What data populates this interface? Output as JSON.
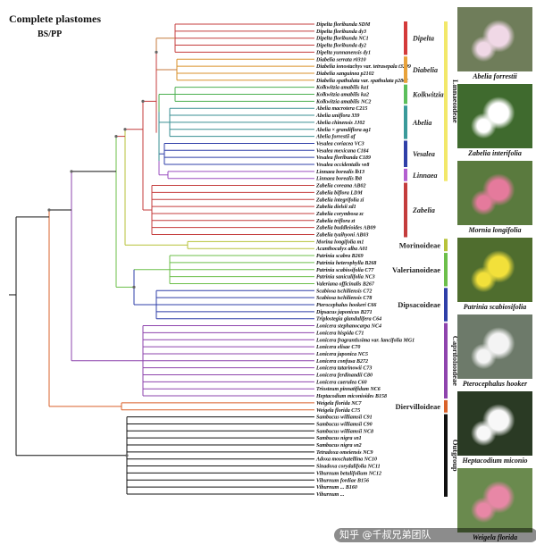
{
  "figure": {
    "title": "Complete plastomes",
    "subtitle": "BS/PP",
    "watermark": "知乎 @千叔兄弟团队"
  },
  "taxa": [
    {
      "n": "Dipelta floribunda SDM",
      "c": "#c43c3c"
    },
    {
      "n": "Dipelta floribunda dy3",
      "c": "#c43c3c"
    },
    {
      "n": "Dipelta floribunda NC1",
      "c": "#c43c3c"
    },
    {
      "n": "Dipelta floribunda dy2",
      "c": "#c43c3c"
    },
    {
      "n": "Dipelta yunnanensis dy1",
      "c": "#c43c3c"
    },
    {
      "n": "Diabelia serrata r0310",
      "c": "#d9922b"
    },
    {
      "n": "Diabelia ionostachys var. tetrasepala t3209",
      "c": "#d9922b"
    },
    {
      "n": "Diabelia sanguinea p2102",
      "c": "#d9922b"
    },
    {
      "n": "Diabelia spathulata var. spathulata p2801",
      "c": "#d9922b"
    },
    {
      "n": "Kolkwitzia amabilis ka1",
      "c": "#4caf50"
    },
    {
      "n": "Kolkwitzia amabilis ka2",
      "c": "#4caf50"
    },
    {
      "n": "Kolkwitzia amabilis NC2",
      "c": "#4caf50"
    },
    {
      "n": "Abelia macrotera C215",
      "c": "#3a8f93"
    },
    {
      "n": "Abelia uniflora 339",
      "c": "#3a8f93"
    },
    {
      "n": "Abelia chinensis JJ02",
      "c": "#3a8f93"
    },
    {
      "n": "Abelia × grandiflora ag1",
      "c": "#3a8f93"
    },
    {
      "n": "Abelia forrestii af",
      "c": "#3a8f93"
    },
    {
      "n": "Vesalea coriacea VC3",
      "c": "#2f3fa8"
    },
    {
      "n": "Vesalea mexicana C184",
      "c": "#2f3fa8"
    },
    {
      "n": "Vesalea floribunda C189",
      "c": "#2f3fa8"
    },
    {
      "n": "Vesalea occidentalis ve8",
      "c": "#2f3fa8"
    },
    {
      "n": "Linnaea borealis lb13",
      "c": "#9b4fc0"
    },
    {
      "n": "Linnaea borealis lb8",
      "c": "#9b4fc0"
    },
    {
      "n": "Zabelia coreana AB02",
      "c": "#c43c3c"
    },
    {
      "n": "Zabelia biflora LDM",
      "c": "#c43c3c"
    },
    {
      "n": "Zabelia integrifolia zi",
      "c": "#c43c3c"
    },
    {
      "n": "Zabelia dielsii zd1",
      "c": "#c43c3c"
    },
    {
      "n": "Zabelia corymbosa zc",
      "c": "#c43c3c"
    },
    {
      "n": "Zabelia triflora zt",
      "c": "#c43c3c"
    },
    {
      "n": "Zabelia buddleioides AB09",
      "c": "#c43c3c"
    },
    {
      "n": "Zabelia tyaihyoni AB03",
      "c": "#c43c3c"
    },
    {
      "n": "Morina longifolia m1",
      "c": "#b7c23a"
    },
    {
      "n": "Acanthocalyx alba A01",
      "c": "#b7c23a"
    },
    {
      "n": "Patrinia scabra B269",
      "c": "#6cbf4a"
    },
    {
      "n": "Patrinia heterophylla B268",
      "c": "#6cbf4a"
    },
    {
      "n": "Patrinia scabiosifolia C77",
      "c": "#6cbf4a"
    },
    {
      "n": "Patrinia saniculifolia NC3",
      "c": "#6cbf4a"
    },
    {
      "n": "Valeriana officinalis B267",
      "c": "#6cbf4a"
    },
    {
      "n": "Scabiosa tschiliensis C72",
      "c": "#2f3fa8"
    },
    {
      "n": "Scabiosa tschiliensis C78",
      "c": "#2f3fa8"
    },
    {
      "n": "Pterocephalus hookeri C66",
      "c": "#2f3fa8"
    },
    {
      "n": "Dipsacus japonicus B271",
      "c": "#2f3fa8"
    },
    {
      "n": "Triplostegia glandulifera C64",
      "c": "#2f3fa8"
    },
    {
      "n": "Lonicera stephanocarpa NC4",
      "c": "#8e44ad"
    },
    {
      "n": "Lonicera hispida C71",
      "c": "#8e44ad"
    },
    {
      "n": "Lonicera fragrantissima var. lancifolia MG1",
      "c": "#8e44ad"
    },
    {
      "n": "Lonicera elisae C70",
      "c": "#8e44ad"
    },
    {
      "n": "Lonicera japonica NC5",
      "c": "#8e44ad"
    },
    {
      "n": "Lonicera confusa B272",
      "c": "#8e44ad"
    },
    {
      "n": "Lonicera tatarinowii C73",
      "c": "#8e44ad"
    },
    {
      "n": "Lonicera ferdinandii C80",
      "c": "#8e44ad"
    },
    {
      "n": "Lonicera caerulea C60",
      "c": "#8e44ad"
    },
    {
      "n": "Triosteum pinnatifidum NC6",
      "c": "#8e44ad"
    },
    {
      "n": "Heptacodium miconioides B158",
      "c": "#8e44ad"
    },
    {
      "n": "Weigela florida NC7",
      "c": "#d9622b"
    },
    {
      "n": "Weigela florida C75",
      "c": "#d9622b"
    },
    {
      "n": "Sambucus williamsii C91",
      "c": "#111111"
    },
    {
      "n": "Sambucus williamsii C90",
      "c": "#111111"
    },
    {
      "n": "Sambucus williamsii NC8",
      "c": "#111111"
    },
    {
      "n": "Sambucus nigra sn1",
      "c": "#111111"
    },
    {
      "n": "Sambucus nigra sn2",
      "c": "#111111"
    },
    {
      "n": "Tetradoxa omeiensis NC9",
      "c": "#111111"
    },
    {
      "n": "Adoxa moschatellina NC10",
      "c": "#111111"
    },
    {
      "n": "Sinadoxa corydalifolia NC11",
      "c": "#111111"
    },
    {
      "n": "Viburnum betulifolium NC12",
      "c": "#111111"
    },
    {
      "n": "Viburnum fordiae B156",
      "c": "#111111"
    },
    {
      "n": "Viburnum ... B160",
      "c": "#111111"
    },
    {
      "n": "Viburnum ...",
      "c": "#111111"
    }
  ],
  "genera": [
    {
      "label": "Dipelta",
      "from": 0,
      "to": 4,
      "color": "#d43a3a"
    },
    {
      "label": "Diabelia",
      "from": 5,
      "to": 8,
      "color": "#e8a23a"
    },
    {
      "label": "Kolkwitzia",
      "from": 9,
      "to": 11,
      "color": "#5bbf5b"
    },
    {
      "label": "Abelia",
      "from": 12,
      "to": 16,
      "color": "#3a9a9a"
    },
    {
      "label": "Vesalea",
      "from": 17,
      "to": 20,
      "color": "#2f3fa8"
    },
    {
      "label": "Linnaea",
      "from": 21,
      "to": 22,
      "color": "#b35fd0"
    },
    {
      "label": "Zabelia",
      "from": 23,
      "to": 30,
      "color": "#c43c3c"
    }
  ],
  "subfamilies": [
    {
      "label": "Linnaeoideae",
      "from": 0,
      "to": 22,
      "color": "#f2e86a",
      "vertical": true
    },
    {
      "label": "Morinoideae",
      "from": 31,
      "to": 32,
      "color": "#b7c23a",
      "vertical": false
    },
    {
      "label": "Valerianoideae",
      "from": 33,
      "to": 37,
      "color": "#6cbf4a",
      "vertical": false
    },
    {
      "label": "Dipsacoideae",
      "from": 38,
      "to": 42,
      "color": "#2f3fa8",
      "vertical": false
    },
    {
      "label": "Caprifolioideae",
      "from": 43,
      "to": 53,
      "color": "#8e44ad",
      "vertical": true
    },
    {
      "label": "Diervilloideae",
      "from": 54,
      "to": 55,
      "color": "#d9622b",
      "vertical": false
    },
    {
      "label": "Outgroup",
      "from": 56,
      "to": 67,
      "color": "#111111",
      "vertical": true
    }
  ],
  "photos": [
    {
      "label": "Abelia forrestii",
      "bg": "#6f7d5a",
      "flower": "#f0d8e6"
    },
    {
      "label": "Zabelia interifolia",
      "bg": "#3f6a2e",
      "flower": "#ffffff"
    },
    {
      "label": "Mornia longifolia",
      "bg": "#5a7a3e",
      "flower": "#e57a9c"
    },
    {
      "label": "Patrinia scabiosifolia",
      "bg": "#4f6d2e",
      "flower": "#f2e03a"
    },
    {
      "label": "Pterocephalus hooker",
      "bg": "#6d7a6a",
      "flower": "#f4f4f4"
    },
    {
      "label": "Heptacodium miconio",
      "bg": "#2a3a24",
      "flower": "#f8f8f8"
    },
    {
      "label": "Weigela florida",
      "bg": "#6a8a4e",
      "flower": "#e887a6"
    }
  ]
}
